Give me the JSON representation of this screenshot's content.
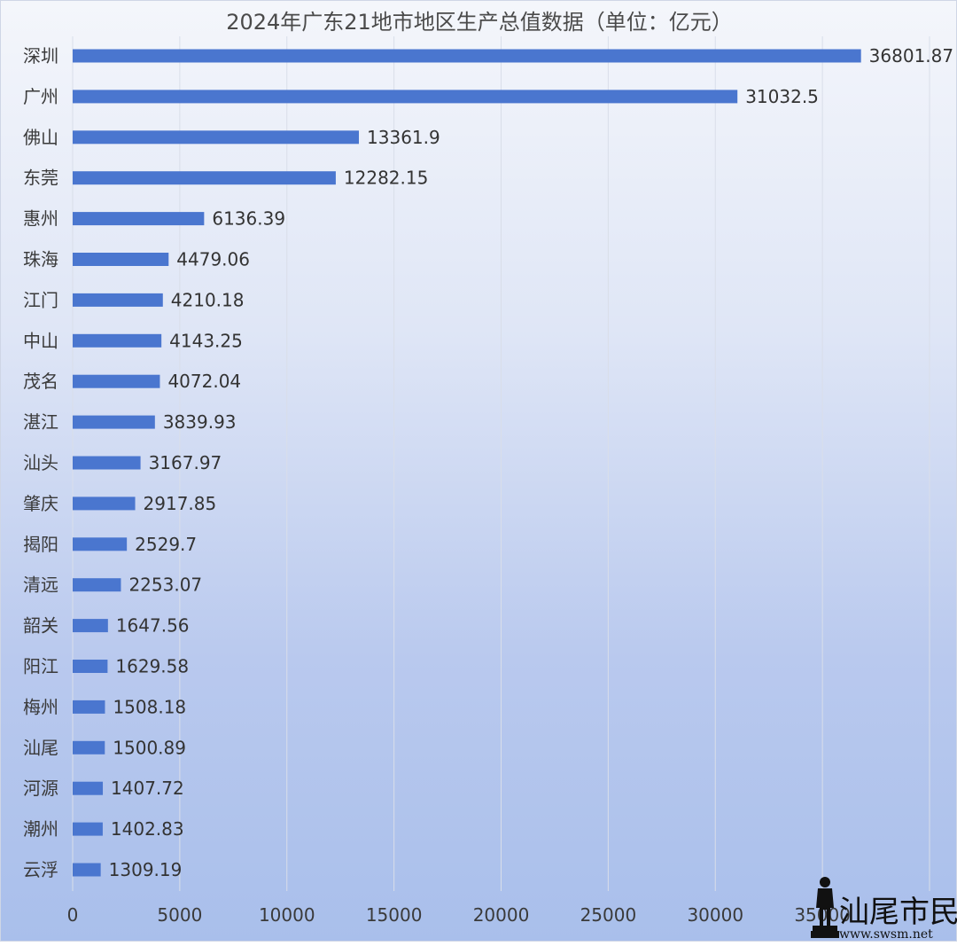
{
  "chart_data": {
    "type": "bar",
    "orientation": "horizontal",
    "title": "2024年广东21地市地区生产总值数据（单位：亿元）",
    "categories": [
      "深圳",
      "广州",
      "佛山",
      "东莞",
      "惠州",
      "珠海",
      "江门",
      "中山",
      "茂名",
      "湛江",
      "汕头",
      "肇庆",
      "揭阳",
      "清远",
      "韶关",
      "阳江",
      "梅州",
      "汕尾",
      "河源",
      "潮州",
      "云浮"
    ],
    "values": [
      36801.87,
      31032.5,
      13361.9,
      12282.15,
      6136.39,
      4479.06,
      4210.18,
      4143.25,
      4072.04,
      3839.93,
      3167.97,
      2917.85,
      2529.7,
      2253.07,
      1647.56,
      1629.58,
      1508.18,
      1500.89,
      1407.72,
      1402.83,
      1309.19
    ],
    "value_labels": [
      "36801.87",
      "31032.5",
      "13361.9",
      "12282.15",
      "6136.39",
      "4479.06",
      "4210.18",
      "4143.25",
      "4072.04",
      "3839.93",
      "3167.97",
      "2917.85",
      "2529.7",
      "2253.07",
      "1647.56",
      "1629.58",
      "1508.18",
      "1500.89",
      "1407.72",
      "1402.83",
      "1309.19"
    ],
    "xlim": [
      0,
      40000
    ],
    "xticks": [
      0,
      5000,
      10000,
      15000,
      20000,
      25000,
      30000,
      35000,
      40000
    ],
    "xtick_labels": [
      "0",
      "5000",
      "10000",
      "15000",
      "20000",
      "25000",
      "30000",
      "35000",
      ""
    ],
    "grid": true,
    "bar_color": "#4a76cf"
  },
  "watermark": {
    "text": "汕尾市民网",
    "url_text": "www.swsm.net"
  }
}
